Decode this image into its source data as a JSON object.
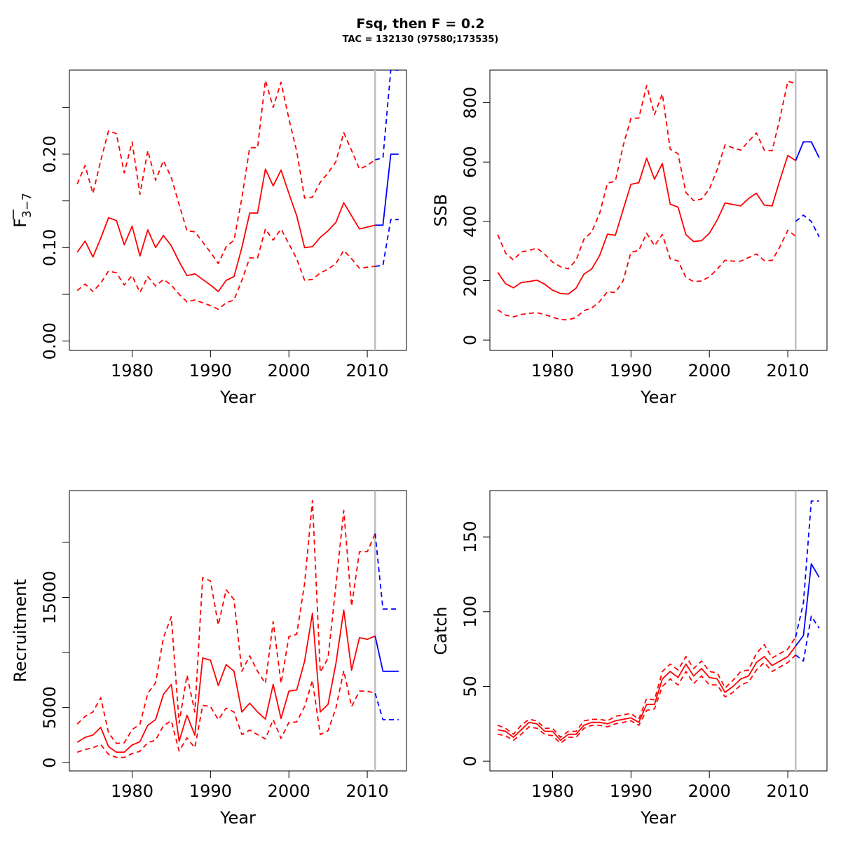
{
  "title": "Fsq, then F = 0.2",
  "subtitle": "TAC = 132130 (97580;173535)",
  "colors": {
    "hist": "#ff0000",
    "proj": "#0000ff",
    "vline": "#c0c0c0"
  },
  "chart_data": [
    {
      "type": "line",
      "key": "fbar",
      "xlabel": "Year",
      "ylabel_main": "F",
      "ylabel_sub": "3−7",
      "xlim": [
        1972,
        2015
      ],
      "ylim": [
        -0.01,
        0.29
      ],
      "xticks": [
        1980,
        1990,
        2000,
        2010
      ],
      "xtick_labels": [
        "1980",
        "1990",
        "2000",
        "2010"
      ],
      "yticks": [
        0.0,
        0.05,
        0.1,
        0.15,
        0.2,
        0.25
      ],
      "ytick_labels": [
        "0.00",
        "",
        "0.10",
        "",
        "0.20",
        ""
      ],
      "vline": 2011,
      "hist": {
        "x": [
          1973,
          1974,
          1975,
          1976,
          1977,
          1978,
          1979,
          1980,
          1981,
          1982,
          1983,
          1984,
          1985,
          1986,
          1987,
          1988,
          1989,
          1990,
          1991,
          1992,
          1993,
          1994,
          1995,
          1996,
          1997,
          1998,
          1999,
          2000,
          2001,
          2002,
          2003,
          2004,
          2005,
          2006,
          2007,
          2008,
          2009,
          2010,
          2011
        ],
        "mid": [
          0.095,
          0.107,
          0.09,
          0.11,
          0.132,
          0.129,
          0.103,
          0.123,
          0.091,
          0.119,
          0.1,
          0.113,
          0.102,
          0.085,
          0.07,
          0.072,
          0.066,
          0.06,
          0.053,
          0.065,
          0.069,
          0.1,
          0.137,
          0.137,
          0.184,
          0.166,
          0.183,
          0.158,
          0.134,
          0.1,
          0.101,
          0.111,
          0.118,
          0.127,
          0.148,
          0.134,
          0.12,
          0.122,
          0.124
        ],
        "lo": [
          0.054,
          0.061,
          0.053,
          0.062,
          0.075,
          0.073,
          0.06,
          0.07,
          0.052,
          0.069,
          0.059,
          0.066,
          0.06,
          0.05,
          0.042,
          0.044,
          0.041,
          0.038,
          0.034,
          0.041,
          0.044,
          0.065,
          0.089,
          0.089,
          0.12,
          0.108,
          0.12,
          0.104,
          0.088,
          0.065,
          0.066,
          0.073,
          0.077,
          0.083,
          0.097,
          0.088,
          0.078,
          0.079,
          0.08
        ],
        "hi": [
          0.168,
          0.188,
          0.158,
          0.193,
          0.225,
          0.222,
          0.18,
          0.213,
          0.157,
          0.204,
          0.172,
          0.193,
          0.175,
          0.146,
          0.118,
          0.117,
          0.106,
          0.095,
          0.083,
          0.101,
          0.108,
          0.153,
          0.207,
          0.207,
          0.279,
          0.25,
          0.277,
          0.238,
          0.203,
          0.153,
          0.154,
          0.17,
          0.18,
          0.192,
          0.223,
          0.204,
          0.184,
          0.188,
          0.194
        ]
      },
      "proj": {
        "x": [
          2011,
          2012,
          2013,
          2014
        ],
        "mid": [
          0.124,
          0.124,
          0.2,
          0.2
        ],
        "lo": [
          0.08,
          0.081,
          0.13,
          0.13
        ],
        "hi": [
          0.194,
          0.196,
          0.29,
          0.29
        ]
      }
    },
    {
      "type": "line",
      "key": "ssb",
      "xlabel": "Year",
      "ylabel_main": "SSB",
      "xlim": [
        1972,
        2015
      ],
      "ylim": [
        -35,
        910
      ],
      "xticks": [
        1980,
        1990,
        2000,
        2010
      ],
      "xtick_labels": [
        "1980",
        "1990",
        "2000",
        "2010"
      ],
      "yticks": [
        0,
        200,
        400,
        600,
        800
      ],
      "ytick_labels": [
        "0",
        "200",
        "400",
        "600",
        "800"
      ],
      "vline": 2011,
      "hist": {
        "x": [
          1973,
          1974,
          1975,
          1976,
          1977,
          1978,
          1979,
          1980,
          1981,
          1982,
          1983,
          1984,
          1985,
          1986,
          1987,
          1988,
          1989,
          1990,
          1991,
          1992,
          1993,
          1994,
          1995,
          1996,
          1997,
          1998,
          1999,
          2000,
          2001,
          2002,
          2003,
          2004,
          2005,
          2006,
          2007,
          2008,
          2009,
          2010,
          2011
        ],
        "mid": [
          228,
          190,
          176,
          194,
          197,
          202,
          188,
          168,
          157,
          155,
          175,
          222,
          240,
          285,
          357,
          353,
          440,
          525,
          530,
          613,
          542,
          595,
          458,
          448,
          355,
          332,
          335,
          360,
          405,
          462,
          457,
          452,
          477,
          495,
          455,
          452,
          540,
          622,
          605
        ],
        "lo": [
          102,
          84,
          78,
          86,
          90,
          92,
          86,
          77,
          69,
          68,
          76,
          99,
          108,
          130,
          163,
          160,
          200,
          296,
          302,
          360,
          318,
          356,
          274,
          267,
          211,
          197,
          199,
          213,
          239,
          269,
          266,
          266,
          278,
          290,
          268,
          268,
          315,
          370,
          350
        ],
        "hi": [
          355,
          293,
          270,
          297,
          302,
          310,
          289,
          263,
          247,
          240,
          269,
          340,
          365,
          427,
          529,
          535,
          655,
          748,
          748,
          858,
          760,
          830,
          643,
          628,
          497,
          470,
          475,
          509,
          575,
          658,
          648,
          640,
          670,
          698,
          640,
          638,
          748,
          872,
          865
        ]
      },
      "proj": {
        "x": [
          2011,
          2012,
          2013,
          2014
        ],
        "mid": [
          605,
          668,
          668,
          615
        ],
        "lo": [
          400,
          421,
          400,
          348
        ],
        "hi": [
          605,
          668,
          668,
          615
        ]
      }
    },
    {
      "type": "line",
      "key": "rec",
      "xlabel": "Year",
      "ylabel_main": "Recruitment",
      "xlim": [
        1972,
        2015
      ],
      "ylim": [
        -750,
        24700
      ],
      "xticks": [
        1980,
        1990,
        2000,
        2010
      ],
      "xtick_labels": [
        "1980",
        "1990",
        "2000",
        "2010"
      ],
      "yticks": [
        0,
        5000,
        10000,
        15000,
        20000
      ],
      "ytick_labels": [
        "0",
        "5000",
        "",
        "15000",
        ""
      ],
      "vline": 2011,
      "hist": {
        "x": [
          1973,
          1974,
          1975,
          1976,
          1977,
          1978,
          1979,
          1980,
          1981,
          1982,
          1983,
          1984,
          1985,
          1986,
          1987,
          1988,
          1989,
          1990,
          1991,
          1992,
          1993,
          1994,
          1995,
          1996,
          1997,
          1998,
          1999,
          2000,
          2001,
          2002,
          2003,
          2004,
          2005,
          2006,
          2007,
          2008,
          2009,
          2010,
          2011
        ],
        "mid": [
          1850,
          2300,
          2500,
          3200,
          1450,
          950,
          950,
          1600,
          1900,
          3400,
          3900,
          6200,
          7100,
          1950,
          4300,
          2500,
          9500,
          9300,
          7000,
          8900,
          8300,
          4600,
          5400,
          4600,
          3950,
          7100,
          4000,
          6500,
          6600,
          9200,
          13550,
          4600,
          5300,
          9000,
          13850,
          8400,
          11350,
          11200,
          11500
        ],
        "lo": [
          950,
          1200,
          1350,
          1650,
          750,
          480,
          480,
          820,
          1030,
          1800,
          2050,
          3350,
          3800,
          1050,
          2250,
          1350,
          5200,
          5100,
          3900,
          4950,
          4600,
          2550,
          2950,
          2550,
          2150,
          3900,
          2200,
          3650,
          3700,
          5100,
          7450,
          2550,
          2900,
          4950,
          8350,
          5100,
          6500,
          6500,
          6300
        ],
        "hi": [
          3500,
          4200,
          4600,
          5900,
          2700,
          1750,
          1800,
          3000,
          3500,
          6300,
          7250,
          11350,
          13250,
          3600,
          7950,
          4600,
          16800,
          16500,
          12500,
          15700,
          14800,
          8300,
          9700,
          8300,
          7200,
          12800,
          7200,
          11450,
          11650,
          16250,
          23800,
          8200,
          9500,
          16100,
          22900,
          14200,
          19150,
          19150,
          20800
        ]
      },
      "proj": {
        "x": [
          2011,
          2012,
          2013,
          2014
        ],
        "mid": [
          11500,
          8300,
          8300,
          8300
        ],
        "lo": [
          6300,
          3900,
          3900,
          3900
        ],
        "hi": [
          20800,
          13950,
          13950,
          13950
        ]
      }
    },
    {
      "type": "line",
      "key": "catch",
      "xlabel": "Year",
      "ylabel_main": "Catch",
      "xlim": [
        1972,
        2015
      ],
      "ylim": [
        -6.5,
        181
      ],
      "xticks": [
        1980,
        1990,
        2000,
        2010
      ],
      "xtick_labels": [
        "1980",
        "1990",
        "2000",
        "2010"
      ],
      "yticks": [
        0,
        50,
        100,
        150
      ],
      "ytick_labels": [
        "0",
        "50",
        "100",
        "150"
      ],
      "vline": 2011,
      "hist": {
        "x": [
          1973,
          1974,
          1975,
          1976,
          1977,
          1978,
          1979,
          1980,
          1981,
          1982,
          1983,
          1984,
          1985,
          1986,
          1987,
          1988,
          1989,
          1990,
          1991,
          1992,
          1993,
          1994,
          1995,
          1996,
          1997,
          1998,
          1999,
          2000,
          2001,
          2002,
          2003,
          2004,
          2005,
          2006,
          2007,
          2008,
          2009,
          2010,
          2011
        ],
        "mid": [
          21,
          20,
          16,
          21,
          26,
          25,
          20,
          20,
          14,
          18,
          18,
          24,
          26,
          26,
          25,
          27,
          28,
          29,
          26,
          38,
          38,
          55,
          60,
          56,
          65,
          57,
          62,
          56,
          55,
          46,
          50,
          55,
          57,
          66,
          70,
          64,
          67,
          70,
          77
        ],
        "lo": [
          18,
          17,
          14,
          18,
          23,
          22,
          18,
          17,
          12,
          16,
          16,
          22,
          24,
          24,
          23,
          25,
          26,
          27,
          24,
          34,
          35,
          50,
          55,
          51,
          60,
          52,
          57,
          51,
          51,
          43,
          46,
          51,
          53,
          61,
          66,
          60,
          63,
          66,
          71
        ],
        "hi": [
          24,
          22,
          18,
          24,
          28,
          27,
          22,
          22,
          16,
          20,
          20,
          27,
          28,
          28,
          27,
          30,
          31,
          32,
          28,
          42,
          41,
          60,
          65,
          61,
          70,
          62,
          67,
          60,
          59,
          49,
          54,
          60,
          61,
          72,
          78,
          69,
          72,
          75,
          83
        ]
      },
      "proj": {
        "x": [
          2011,
          2012,
          2013,
          2014
        ],
        "mid": [
          77,
          84,
          132,
          123
        ],
        "lo": [
          71,
          67,
          97,
          89
        ],
        "hi": [
          83,
          106,
          174,
          174
        ]
      }
    }
  ]
}
